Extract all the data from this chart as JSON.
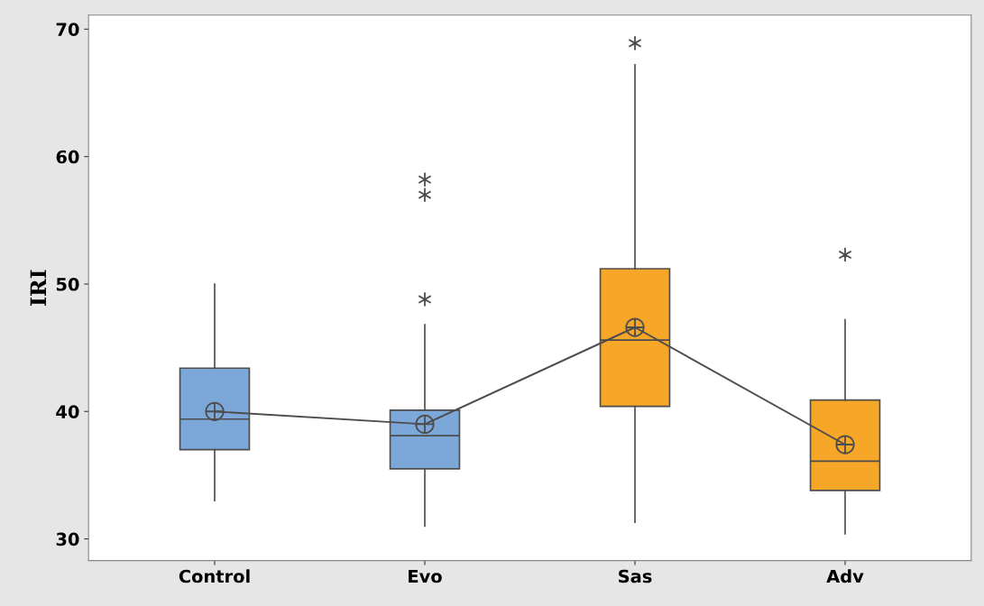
{
  "chart_data": {
    "type": "box",
    "ylabel": "IRI",
    "categories": [
      "Control",
      "Evo",
      "Sas",
      "Adv"
    ],
    "colors": [
      "#7ba7d9",
      "#7ba7d9",
      "#f7a727",
      "#f7a727"
    ],
    "boxes": [
      {
        "low": 33.0,
        "q1": 37.0,
        "median": 39.4,
        "q3": 43.4,
        "high": 50.0,
        "mean": 40.0
      },
      {
        "low": 31.0,
        "q1": 35.5,
        "median": 38.1,
        "q3": 40.1,
        "high": 46.8,
        "mean": 39.0,
        "outliers": [
          48.8,
          57.0,
          58.2
        ]
      },
      {
        "low": 31.3,
        "q1": 40.4,
        "median": 45.6,
        "q3": 51.2,
        "high": 67.2,
        "mean": 46.6,
        "outliers": [
          68.9
        ]
      },
      {
        "low": 30.4,
        "q1": 33.8,
        "median": 36.1,
        "q3": 40.9,
        "high": 47.2,
        "mean": 37.4,
        "outliers": [
          52.3
        ]
      }
    ],
    "series": [
      {
        "type": "line",
        "color": "#4d4d4d",
        "values": [
          40.0,
          39.0,
          46.6,
          37.4
        ]
      }
    ],
    "ylim": [
      28.3,
      71.1
    ],
    "yticks": [
      30,
      40,
      50,
      60,
      70
    ],
    "grid": false,
    "legend": false
  }
}
